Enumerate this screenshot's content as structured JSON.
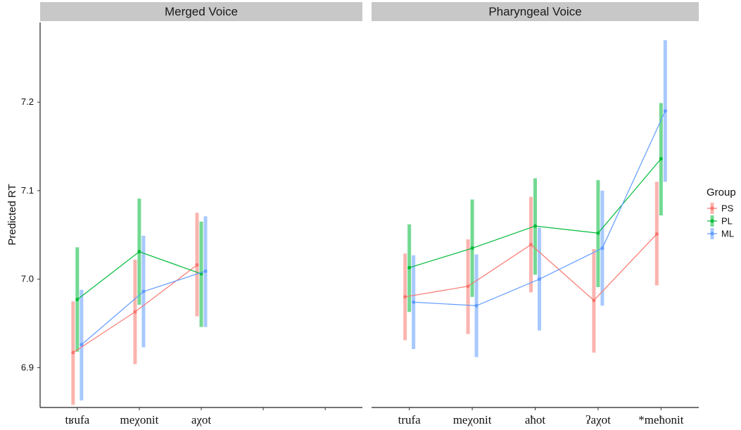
{
  "chart_data": {
    "type": "line",
    "ylabel": "Predicted RT",
    "ylim": [
      6.855,
      7.29
    ],
    "yticks": [
      "6.9",
      "7.0",
      "7.1",
      "7.2"
    ],
    "grid": false,
    "legend": {
      "title": "Group",
      "placement": "right",
      "entries": [
        "PS",
        "PL",
        "ML"
      ]
    },
    "colors": {
      "PS": "#F8766D",
      "PL": "#00BA38",
      "ML": "#619CFF"
    },
    "panels": [
      {
        "title": "Merged Voice",
        "categories": [
          "tʁufa",
          "meχonit",
          "aχot",
          "",
          ""
        ],
        "series": [
          {
            "name": "PS",
            "values": [
              6.917,
              6.963,
              7.016
            ],
            "lower": [
              6.858,
              6.904,
              6.958
            ],
            "upper": [
              6.975,
              7.022,
              7.075
            ]
          },
          {
            "name": "PL",
            "values": [
              6.977,
              7.031,
              7.006
            ],
            "lower": [
              6.918,
              6.971,
              6.946
            ],
            "upper": [
              7.036,
              7.091,
              7.065
            ]
          },
          {
            "name": "ML",
            "values": [
              6.926,
              6.986,
              7.009
            ],
            "lower": [
              6.863,
              6.923,
              6.946
            ],
            "upper": [
              6.988,
              7.049,
              7.071
            ]
          }
        ]
      },
      {
        "title": "Pharyngeal Voice",
        "categories": [
          "trufa",
          "meχonit",
          "aħot",
          "ʔaχot",
          "*meħonit"
        ],
        "series": [
          {
            "name": "PS",
            "values": [
              6.98,
              6.992,
              7.039,
              6.976,
              7.051
            ],
            "lower": [
              6.931,
              6.938,
              6.985,
              6.917,
              6.993
            ],
            "upper": [
              7.029,
              7.045,
              7.093,
              7.034,
              7.11
            ]
          },
          {
            "name": "PL",
            "values": [
              7.013,
              7.035,
              7.06,
              7.052,
              7.136
            ],
            "lower": [
              6.963,
              6.98,
              7.005,
              6.991,
              7.072
            ],
            "upper": [
              7.062,
              7.09,
              7.114,
              7.112,
              7.199
            ]
          },
          {
            "name": "ML",
            "values": [
              6.974,
              6.97,
              7.0,
              7.035,
              7.19
            ],
            "lower": [
              6.921,
              6.912,
              6.942,
              6.97,
              7.11
            ],
            "upper": [
              7.027,
              7.028,
              7.058,
              7.1,
              7.27
            ]
          }
        ]
      }
    ]
  }
}
